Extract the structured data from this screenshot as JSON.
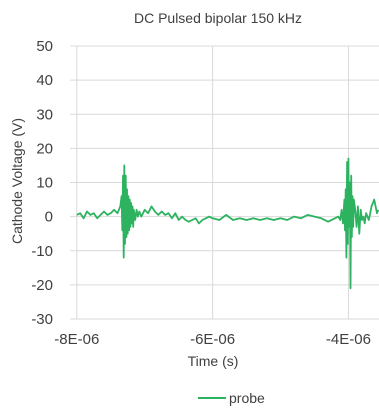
{
  "chart_data": {
    "type": "line",
    "title": "DC Pulsed bipolar 150 kHz",
    "xlabel": "Time (s)",
    "ylabel": "Cathode Voltage (V)",
    "xlim": [
      -8.1e-06,
      -3.55e-06
    ],
    "ylim": [
      -30,
      50
    ],
    "x_ticks": [
      -8e-06,
      -6e-06,
      -4e-06
    ],
    "x_tick_labels": [
      "-8E-06",
      "-6E-06",
      "-4E-06"
    ],
    "y_ticks": [
      -30,
      -20,
      -10,
      0,
      10,
      20,
      30,
      40,
      50
    ],
    "y_tick_labels": [
      "-30",
      "-20",
      "-10",
      "0",
      "10",
      "20",
      "30",
      "40",
      "50"
    ],
    "grid": "vertical and horizontal gridlines",
    "legend_position": "bottom",
    "series": [
      {
        "name": "probe",
        "color": "#2db360",
        "x": [
          -8e-06,
          -7.95e-06,
          -7.9e-06,
          -7.85e-06,
          -7.8e-06,
          -7.75e-06,
          -7.7e-06,
          -7.65e-06,
          -7.6e-06,
          -7.55e-06,
          -7.5e-06,
          -7.45e-06,
          -7.4e-06,
          -7.36e-06,
          -7.34e-06,
          -7.33e-06,
          -7.32e-06,
          -7.31e-06,
          -7.3e-06,
          -7.29e-06,
          -7.28e-06,
          -7.27e-06,
          -7.26e-06,
          -7.25e-06,
          -7.24e-06,
          -7.23e-06,
          -7.22e-06,
          -7.21e-06,
          -7.2e-06,
          -7.19e-06,
          -7.18e-06,
          -7.17e-06,
          -7.16e-06,
          -7.14e-06,
          -7.12e-06,
          -7.1e-06,
          -7.08e-06,
          -7.05e-06,
          -7e-06,
          -6.95e-06,
          -6.9e-06,
          -6.85e-06,
          -6.8e-06,
          -6.75e-06,
          -6.7e-06,
          -6.65e-06,
          -6.6e-06,
          -6.55e-06,
          -6.5e-06,
          -6.45e-06,
          -6.4e-06,
          -6.35e-06,
          -6.3e-06,
          -6.25e-06,
          -6.2e-06,
          -6.15e-06,
          -6.1e-06,
          -6.05e-06,
          -6e-06,
          -5.9e-06,
          -5.8e-06,
          -5.7e-06,
          -5.6e-06,
          -5.5e-06,
          -5.4e-06,
          -5.3e-06,
          -5.2e-06,
          -5.1e-06,
          -5e-06,
          -4.9e-06,
          -4.8e-06,
          -4.7e-06,
          -4.6e-06,
          -4.5e-06,
          -4.4e-06,
          -4.3e-06,
          -4.2e-06,
          -4.15e-06,
          -4.12e-06,
          -4.1e-06,
          -4.08e-06,
          -4.06e-06,
          -4.05e-06,
          -4.04e-06,
          -4.03e-06,
          -4.02e-06,
          -4.01e-06,
          -4e-06,
          -3.99e-06,
          -3.98e-06,
          -3.97e-06,
          -3.96e-06,
          -3.95e-06,
          -3.94e-06,
          -3.93e-06,
          -3.92e-06,
          -3.9e-06,
          -3.88e-06,
          -3.86e-06,
          -3.84e-06,
          -3.82e-06,
          -3.8e-06,
          -3.78e-06,
          -3.76e-06,
          -3.74e-06,
          -3.72e-06,
          -3.7e-06,
          -3.68e-06,
          -3.66e-06,
          -3.64e-06,
          -3.62e-06,
          -3.6e-06,
          -3.58e-06,
          -3.56e-06
        ],
        "y": [
          0.5,
          1,
          -0.5,
          1.5,
          0.5,
          1,
          -0.5,
          0.5,
          1.5,
          0.5,
          1,
          2,
          1,
          3,
          6,
          -4,
          12,
          -12,
          15,
          -8,
          12,
          -6,
          8,
          -5,
          6,
          -4,
          5,
          -3,
          4,
          -2,
          3,
          -3,
          2,
          -1,
          2,
          0,
          1.5,
          0,
          2,
          1,
          3,
          1.5,
          0.5,
          1.5,
          0.5,
          1,
          -0.5,
          1,
          -1,
          0,
          -1,
          -1.5,
          -1,
          -0.5,
          -2,
          -1,
          -0.5,
          0,
          -0.5,
          -1,
          0.5,
          -1,
          -0.5,
          -1,
          -0.5,
          -1,
          -0.5,
          -1,
          -0.5,
          -1,
          0,
          -0.5,
          0.5,
          0,
          -0.5,
          -1.5,
          -0.5,
          0,
          -1,
          2,
          -2,
          5,
          -4,
          8,
          -12,
          16,
          -8,
          17,
          -3,
          10,
          -21,
          12,
          -6,
          6,
          -3,
          5,
          2,
          -3,
          3,
          -5,
          2,
          -1,
          0,
          -2,
          1,
          0,
          -1,
          1,
          3,
          4,
          5,
          3,
          1,
          2
        ]
      }
    ]
  }
}
